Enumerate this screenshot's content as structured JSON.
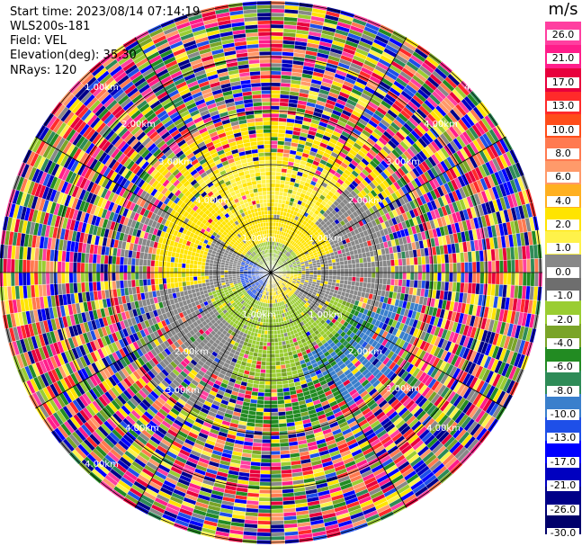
{
  "header": {
    "start_time": "Start time: 2023/08/14 07:14:19",
    "instrument": "WLS200s-181",
    "field": "Field: VEL",
    "elevation": "Elevation(deg): 35.30",
    "nrays": "NRays: 120"
  },
  "colorbar": {
    "unit": "m/s",
    "ticks": [
      "26.0",
      "21.0",
      "17.0",
      "13.0",
      "10.0",
      "8.0",
      "6.0",
      "4.0",
      "2.0",
      "1.0",
      "0.0",
      "-1.0",
      "-2.0",
      "-4.0",
      "-6.0",
      "-8.0",
      "-10.0",
      "-13.0",
      "-17.0",
      "-21.0",
      "-26.0",
      "-30.0"
    ],
    "colors": [
      "#ff3fa0",
      "#ff1d8a",
      "#e8003c",
      "#ff2a2a",
      "#ff4d1a",
      "#ff7a50",
      "#ff9a6a",
      "#ffb020",
      "#ffe400",
      "#fff24a",
      "#888888",
      "#6e6e6e",
      "#9acd32",
      "#7aa428",
      "#228b22",
      "#2e8b57",
      "#3a7fcc",
      "#1e4fe8",
      "#0000ff",
      "#0000c0",
      "#000088",
      "#00006a"
    ]
  },
  "range_labels": [
    "1.00km",
    "2.00km",
    "3.00km",
    "4.00km"
  ],
  "ring_labels": [
    {
      "text": "4.00km",
      "deg": -41
    },
    {
      "text": "3.00km",
      "deg": -36
    },
    {
      "text": "2.00km",
      "deg": -30
    },
    {
      "text": "1.00km",
      "deg": -20
    },
    {
      "text": "1.00km",
      "deg": 35
    },
    {
      "text": "2.00km",
      "deg": 30
    },
    {
      "text": "3.00km",
      "deg": 34
    },
    {
      "text": "4.00km",
      "deg": 37
    }
  ]
}
